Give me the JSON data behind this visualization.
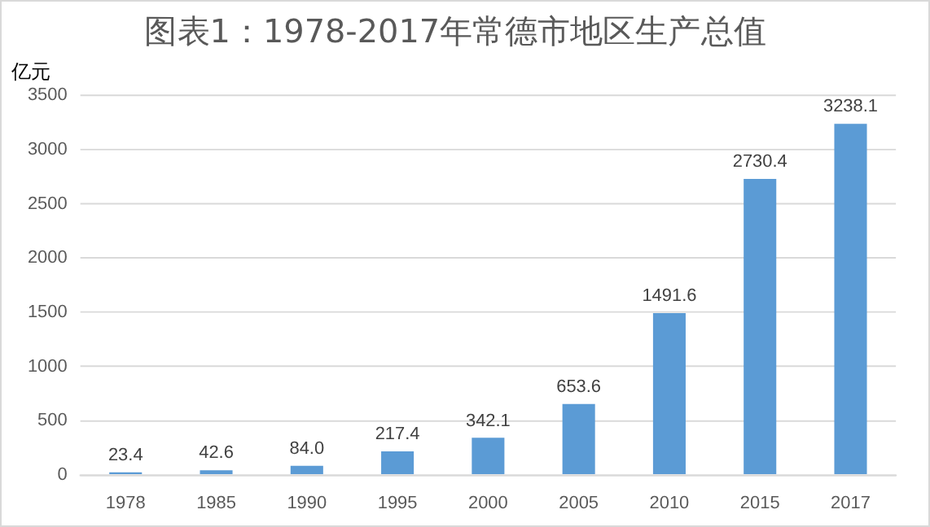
{
  "chart_data": {
    "type": "bar",
    "title": "图表1：1978-2017年常德市地区生产总值",
    "ylabel": "亿元",
    "categories": [
      "1978",
      "1985",
      "1990",
      "1995",
      "2000",
      "2005",
      "2010",
      "2015",
      "2017"
    ],
    "values": [
      23.4,
      42.6,
      84.0,
      217.4,
      342.1,
      653.6,
      1491.6,
      2730.4,
      3238.1
    ],
    "value_labels": [
      "23.4",
      "42.6",
      "84.0",
      "217.4",
      "342.1",
      "653.6",
      "1491.6",
      "2730.4",
      "3238.1"
    ],
    "color": "#5b9bd5",
    "ylim": [
      0,
      3500
    ],
    "yticks": [
      0,
      500,
      1000,
      1500,
      2000,
      2500,
      3000,
      3500
    ],
    "grid": "y"
  }
}
